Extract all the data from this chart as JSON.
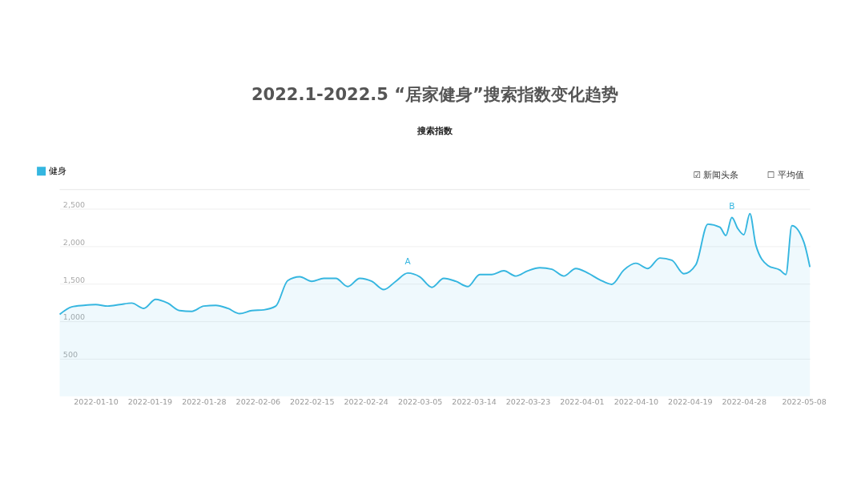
{
  "chart_data": {
    "type": "area",
    "title": "2022.1-2022.5 “居家健身”搜索指数变化趋势",
    "subtitle": "搜索指数",
    "x": [
      "2022-01-04",
      "2022-01-06",
      "2022-01-08",
      "2022-01-10",
      "2022-01-12",
      "2022-01-14",
      "2022-01-16",
      "2022-01-18",
      "2022-01-20",
      "2022-01-22",
      "2022-01-24",
      "2022-01-26",
      "2022-01-28",
      "2022-01-30",
      "2022-02-01",
      "2022-02-03",
      "2022-02-05",
      "2022-02-07",
      "2022-02-09",
      "2022-02-11",
      "2022-02-13",
      "2022-02-15",
      "2022-02-17",
      "2022-02-19",
      "2022-02-21",
      "2022-02-23",
      "2022-02-25",
      "2022-02-27",
      "2022-03-01",
      "2022-03-03",
      "2022-03-05",
      "2022-03-07",
      "2022-03-09",
      "2022-03-11",
      "2022-03-13",
      "2022-03-15",
      "2022-03-17",
      "2022-03-19",
      "2022-03-21",
      "2022-03-23",
      "2022-03-25",
      "2022-03-27",
      "2022-03-29",
      "2022-03-31",
      "2022-04-02",
      "2022-04-04",
      "2022-04-06",
      "2022-04-08",
      "2022-04-10",
      "2022-04-12",
      "2022-04-14",
      "2022-04-16",
      "2022-04-18",
      "2022-04-20",
      "2022-04-22",
      "2022-04-24",
      "2022-04-25",
      "2022-04-26",
      "2022-04-27",
      "2022-04-28",
      "2022-04-29",
      "2022-04-30",
      "2022-05-02",
      "2022-05-04",
      "2022-05-05",
      "2022-05-06",
      "2022-05-08",
      "2022-05-09"
    ],
    "series": [
      {
        "name": "健身",
        "color": "#35b6e0",
        "values": [
          1090,
          1190,
          1210,
          1220,
          1200,
          1220,
          1240,
          1170,
          1290,
          1240,
          1140,
          1130,
          1200,
          1210,
          1170,
          1100,
          1140,
          1150,
          1200,
          1540,
          1590,
          1530,
          1570,
          1570,
          1460,
          1570,
          1530,
          1420,
          1530,
          1640,
          1590,
          1450,
          1570,
          1530,
          1460,
          1620,
          1620,
          1670,
          1600,
          1670,
          1710,
          1690,
          1600,
          1700,
          1640,
          1550,
          1490,
          1680,
          1770,
          1700,
          1840,
          1810,
          1630,
          1750,
          2290,
          2250,
          2140,
          2380,
          2230,
          2150,
          2430,
          2010,
          1740,
          1680,
          1620,
          2270,
          2050,
          1720
        ]
      }
    ],
    "xlim": [
      "2022-01-04",
      "2022-05-09"
    ],
    "xticks": [
      "2022-01-10",
      "2022-01-19",
      "2022-01-28",
      "2022-02-06",
      "2022-02-15",
      "2022-02-24",
      "2022-03-05",
      "2022-03-14",
      "2022-03-23",
      "2022-04-01",
      "2022-04-10",
      "2022-04-19",
      "2022-04-28",
      "2022-05-08"
    ],
    "ylim": [
      0,
      2750
    ],
    "yticks": [
      500,
      {
        "value": 1000,
        "label": "1,000"
      },
      {
        "value": 1500,
        "label": "1,500"
      },
      {
        "value": 2000,
        "label": "2,000"
      },
      {
        "value": 2500,
        "label": "2,500"
      }
    ],
    "grid": "y",
    "legend": "top left",
    "annotations": [
      {
        "text": "A",
        "x": "2022-03-03",
        "y": 1640
      },
      {
        "text": "B",
        "x": "2022-04-26",
        "y": 2380
      },
      "☑ 新闻头条",
      "☐ 平均值"
    ]
  }
}
